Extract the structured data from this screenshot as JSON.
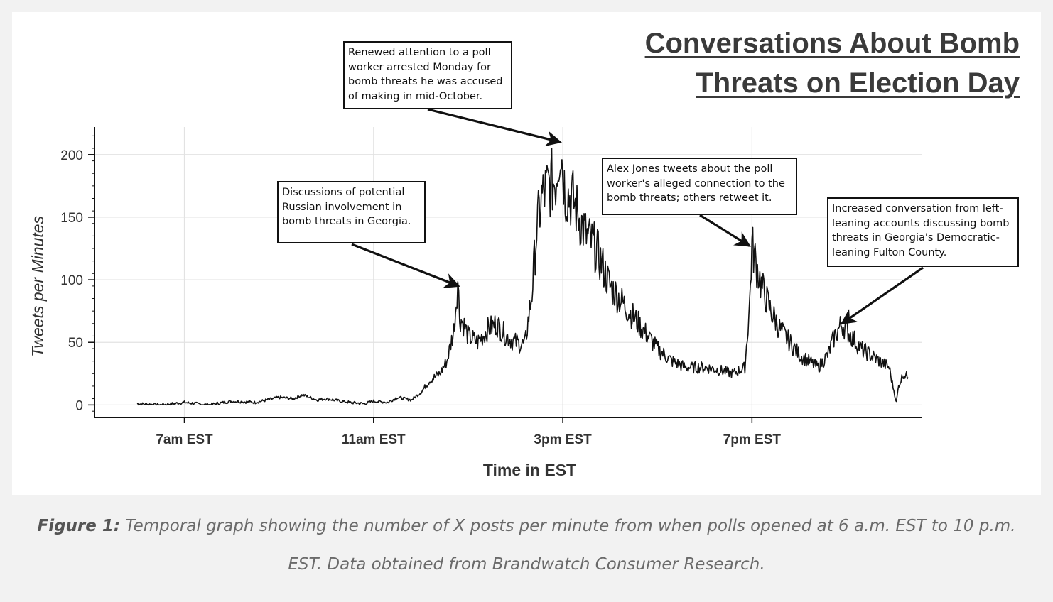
{
  "figure": {
    "title_line1": "Conversations About Bomb",
    "title_line2": "Threats on Election Day",
    "caption_label": "Figure 1:",
    "caption_text": " Temporal graph showing the number of X posts per minute from when polls opened at 6 a.m. EST to 10 p.m. EST. Data obtained from Brandwatch Consumer Research."
  },
  "annotations": [
    {
      "text": "Renewed attention to a poll\nworker arrested Monday for\nbomb threats he was accused\nof making in mid-October.",
      "points_to_hour": 14.95,
      "points_to_value": 210
    },
    {
      "text": "Discussions of potential\nRussian involvement in\nbomb threats in Georgia.",
      "points_to_hour": 12.8,
      "points_to_value": 95
    },
    {
      "text": "Alex Jones tweets about the poll\nworker's alleged connection to the\nbomb threats; others retweet it.",
      "points_to_hour": 18.95,
      "points_to_value": 127
    },
    {
      "text": "Increased conversation from left-\nleaning accounts discussing bomb\nthreats in Georgia's Democratic-\nleaning Fulton County.",
      "points_to_hour": 20.9,
      "points_to_value": 65
    }
  ],
  "chart_data": {
    "type": "line",
    "xlabel": "Time in EST",
    "ylabel": "Tweets per Minutes",
    "x_unit": "hour of day (EST)",
    "xlim": [
      5.1,
      22.6
    ],
    "ylim": [
      -10,
      222
    ],
    "x_ticks": [
      {
        "hour": 7,
        "label": "7am EST"
      },
      {
        "hour": 11,
        "label": "11am EST"
      },
      {
        "hour": 15,
        "label": "3pm EST"
      },
      {
        "hour": 19,
        "label": "7pm EST"
      }
    ],
    "y_ticks": [
      0,
      50,
      100,
      150,
      200
    ],
    "grid": true,
    "series": [
      {
        "x": [
          6.0,
          6.5,
          7.0,
          7.5,
          8.0,
          8.5,
          9.0,
          9.3,
          9.5,
          9.8,
          10.0,
          10.3,
          10.5,
          10.8,
          11.0,
          11.3,
          11.5,
          11.8,
          12.0,
          12.2,
          12.4,
          12.55,
          12.7,
          12.78,
          12.82,
          12.9,
          13.0,
          13.2,
          13.4,
          13.6,
          13.8,
          14.0,
          14.2,
          14.35,
          14.45,
          14.55,
          14.7,
          14.85,
          14.95,
          15.05,
          15.2,
          15.35,
          15.5,
          15.7,
          16.0,
          16.3,
          16.6,
          17.0,
          17.3,
          17.6,
          18.0,
          18.3,
          18.6,
          18.85,
          18.95,
          19.0,
          19.2,
          19.4,
          19.6,
          19.8,
          20.0,
          20.2,
          20.4,
          20.6,
          20.75,
          20.9,
          21.1,
          21.3,
          21.5,
          21.7,
          21.9,
          22.05,
          22.1,
          22.2,
          22.3
        ],
        "y": [
          1,
          0,
          2,
          0,
          3,
          2,
          6,
          5,
          8,
          4,
          5,
          3,
          2,
          1,
          3,
          2,
          6,
          4,
          10,
          20,
          25,
          35,
          60,
          100,
          70,
          65,
          55,
          50,
          60,
          65,
          55,
          50,
          48,
          90,
          140,
          165,
          175,
          180,
          210,
          170,
          165,
          150,
          135,
          125,
          95,
          80,
          65,
          45,
          35,
          30,
          30,
          28,
          25,
          30,
          80,
          127,
          95,
          75,
          60,
          50,
          40,
          35,
          30,
          40,
          55,
          65,
          55,
          45,
          40,
          35,
          30,
          2,
          15,
          25,
          22
        ]
      }
    ]
  }
}
